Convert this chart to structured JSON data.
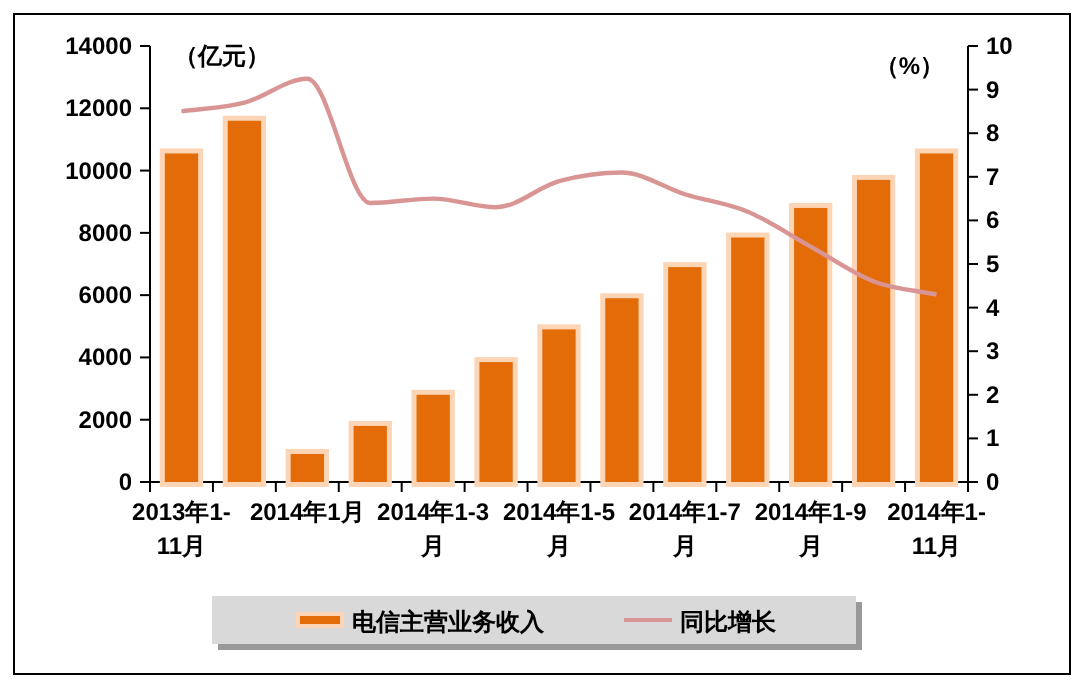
{
  "chart_data": {
    "type": "bar",
    "categories": [
      "2013年1-11月",
      null,
      "2014年1月",
      null,
      "2014年1-3月",
      null,
      "2014年1-5月",
      null,
      "2014年1-7月",
      null,
      "2014年1-9月",
      null,
      "2014年1-11月"
    ],
    "series": [
      {
        "name": "电信主营业务收入",
        "color": "#e36c09",
        "values": [
          10550,
          11600,
          900,
          1800,
          2800,
          3850,
          4900,
          5900,
          6900,
          7850,
          8800,
          9700,
          10550
        ]
      },
      {
        "name": "同比增长",
        "type": "line",
        "axis": "y2",
        "color": "#d99594",
        "values": [
          8.5,
          8.7,
          9.25,
          6.4,
          6.5,
          6.3,
          6.9,
          7.1,
          6.6,
          6.2,
          5.4,
          4.6,
          4.3
        ]
      }
    ],
    "ylim": [
      0,
      14000
    ],
    "yticks": [
      0,
      2000,
      4000,
      6000,
      8000,
      10000,
      12000,
      14000
    ],
    "y2lim": [
      0,
      10
    ],
    "y2ticks": [
      0,
      1,
      2,
      3,
      4,
      5,
      6,
      7,
      8,
      9,
      10
    ],
    "annotations": [
      "（亿元）",
      "（%）"
    ],
    "legend": "bottom",
    "grid": false
  }
}
